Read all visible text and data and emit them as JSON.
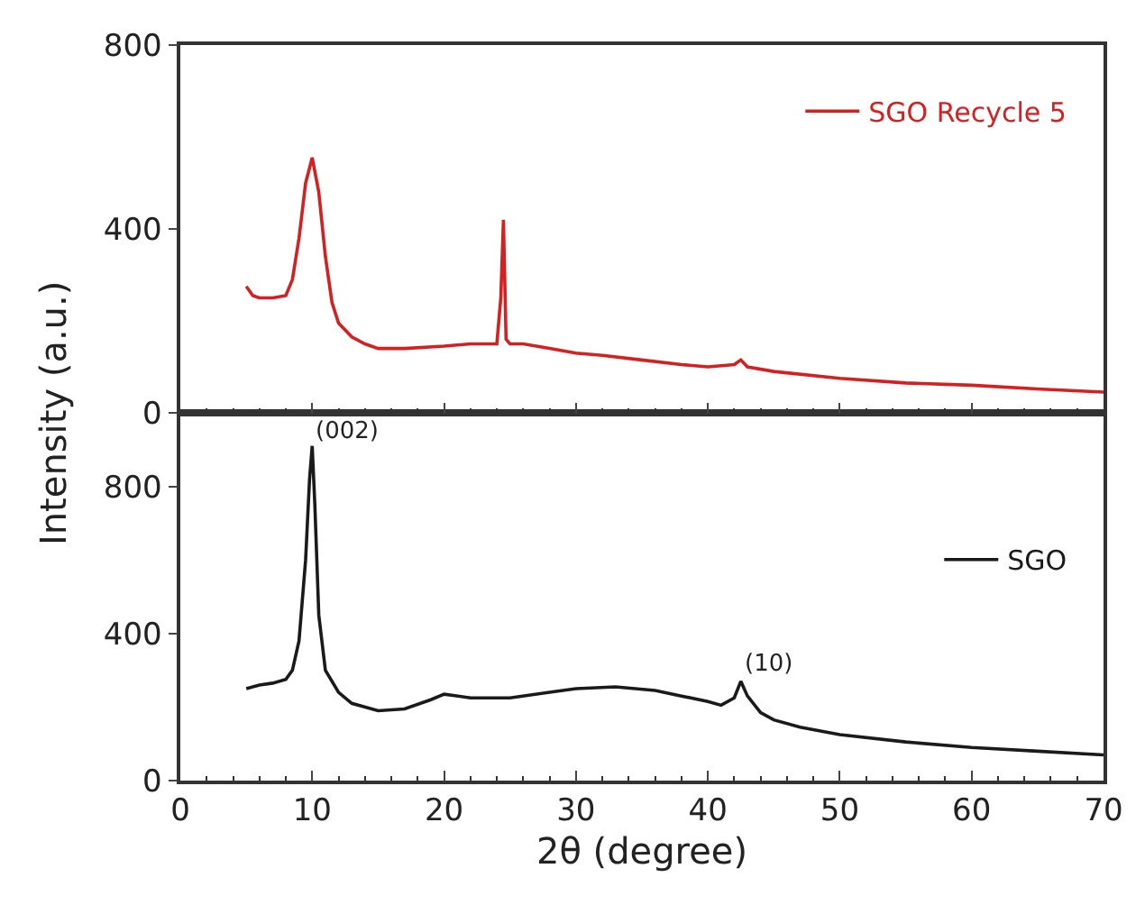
{
  "chart_data": [
    {
      "type": "line",
      "ylabel": "Intensity (a.u.)",
      "xlim": [
        0,
        70
      ],
      "xticks": [
        0,
        10,
        20,
        30,
        40,
        50,
        60,
        70
      ],
      "ylim": [
        0,
        800
      ],
      "yticks": [
        0,
        400,
        800
      ],
      "tick_labels": "y",
      "legend": "top right",
      "marker": "none",
      "line_style": "solid",
      "series": [
        {
          "name": "SGO Recycle 5",
          "color": "#d42020",
          "x": [
            5,
            5.5,
            6,
            7,
            8,
            8.5,
            9,
            9.5,
            10,
            10.5,
            11,
            11.5,
            12,
            13,
            14,
            15,
            17,
            20,
            22,
            24,
            24.3,
            24.5,
            24.7,
            25,
            26,
            28,
            30,
            32,
            35,
            38,
            40,
            42,
            42.5,
            43,
            45,
            50,
            55,
            60,
            65,
            70
          ],
          "values": [
            275,
            255,
            250,
            250,
            255,
            290,
            380,
            500,
            555,
            480,
            340,
            240,
            195,
            165,
            150,
            140,
            140,
            145,
            150,
            150,
            250,
            420,
            160,
            150,
            150,
            140,
            130,
            125,
            115,
            105,
            100,
            105,
            115,
            100,
            90,
            75,
            65,
            60,
            52,
            45
          ]
        }
      ]
    },
    {
      "type": "line",
      "xlabel": "2θ (degree)",
      "xlim": [
        0,
        70
      ],
      "xticks": [
        0,
        10,
        20,
        30,
        40,
        50,
        60,
        70
      ],
      "ylim": [
        0,
        1000
      ],
      "yticks": [
        0,
        400,
        800
      ],
      "legend": "right",
      "marker": "none",
      "line_style": "solid",
      "annotations": [
        {
          "text": "(002)",
          "x": 10,
          "y": 900
        },
        {
          "text": "(10)",
          "x": 42.5,
          "y": 270
        }
      ],
      "series": [
        {
          "name": "SGO",
          "color": "#1a1a1a",
          "x": [
            5,
            6,
            7,
            8,
            8.5,
            9,
            9.5,
            9.8,
            10,
            10.2,
            10.5,
            11,
            12,
            13,
            15,
            17,
            19,
            20,
            22,
            25,
            28,
            30,
            33,
            36,
            38,
            40,
            41,
            42,
            42.5,
            43,
            44,
            45,
            47,
            50,
            55,
            60,
            65,
            70
          ],
          "values": [
            250,
            260,
            265,
            275,
            300,
            380,
            600,
            820,
            910,
            750,
            450,
            300,
            240,
            210,
            190,
            195,
            220,
            235,
            225,
            225,
            240,
            250,
            255,
            245,
            230,
            215,
            205,
            225,
            270,
            230,
            185,
            165,
            145,
            125,
            105,
            90,
            80,
            70
          ]
        }
      ]
    }
  ]
}
